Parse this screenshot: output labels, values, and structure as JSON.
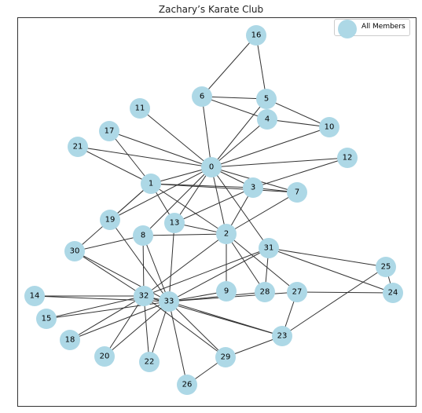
{
  "title": "Zachary’s Karate Club",
  "legend": {
    "label": "All Members"
  },
  "colors": {
    "node": "#add8e6",
    "edge": "#333333"
  },
  "graph": {
    "nodes": [
      "0",
      "1",
      "2",
      "3",
      "4",
      "5",
      "6",
      "7",
      "8",
      "9",
      "10",
      "11",
      "12",
      "13",
      "14",
      "15",
      "16",
      "17",
      "18",
      "19",
      "20",
      "21",
      "22",
      "23",
      "24",
      "25",
      "26",
      "27",
      "28",
      "29",
      "30",
      "31",
      "32",
      "33"
    ],
    "edges": [
      [
        0,
        1
      ],
      [
        0,
        2
      ],
      [
        0,
        3
      ],
      [
        0,
        4
      ],
      [
        0,
        5
      ],
      [
        0,
        6
      ],
      [
        0,
        7
      ],
      [
        0,
        8
      ],
      [
        0,
        10
      ],
      [
        0,
        11
      ],
      [
        0,
        12
      ],
      [
        0,
        13
      ],
      [
        0,
        17
      ],
      [
        0,
        19
      ],
      [
        0,
        21
      ],
      [
        0,
        31
      ],
      [
        1,
        2
      ],
      [
        1,
        3
      ],
      [
        1,
        7
      ],
      [
        1,
        13
      ],
      [
        1,
        17
      ],
      [
        1,
        19
      ],
      [
        1,
        21
      ],
      [
        1,
        30
      ],
      [
        2,
        3
      ],
      [
        2,
        7
      ],
      [
        2,
        8
      ],
      [
        2,
        9
      ],
      [
        2,
        13
      ],
      [
        2,
        27
      ],
      [
        2,
        28
      ],
      [
        2,
        32
      ],
      [
        3,
        7
      ],
      [
        3,
        12
      ],
      [
        3,
        13
      ],
      [
        4,
        6
      ],
      [
        4,
        10
      ],
      [
        5,
        6
      ],
      [
        5,
        10
      ],
      [
        5,
        16
      ],
      [
        6,
        16
      ],
      [
        8,
        30
      ],
      [
        8,
        32
      ],
      [
        8,
        33
      ],
      [
        9,
        33
      ],
      [
        13,
        33
      ],
      [
        14,
        32
      ],
      [
        14,
        33
      ],
      [
        15,
        32
      ],
      [
        15,
        33
      ],
      [
        18,
        32
      ],
      [
        18,
        33
      ],
      [
        19,
        33
      ],
      [
        20,
        32
      ],
      [
        20,
        33
      ],
      [
        22,
        32
      ],
      [
        22,
        33
      ],
      [
        23,
        25
      ],
      [
        23,
        27
      ],
      [
        23,
        29
      ],
      [
        23,
        32
      ],
      [
        23,
        33
      ],
      [
        24,
        25
      ],
      [
        24,
        27
      ],
      [
        24,
        31
      ],
      [
        25,
        31
      ],
      [
        26,
        29
      ],
      [
        26,
        33
      ],
      [
        27,
        33
      ],
      [
        28,
        31
      ],
      [
        28,
        33
      ],
      [
        29,
        32
      ],
      [
        29,
        33
      ],
      [
        30,
        32
      ],
      [
        30,
        33
      ],
      [
        31,
        32
      ],
      [
        31,
        33
      ],
      [
        32,
        33
      ]
    ]
  }
}
